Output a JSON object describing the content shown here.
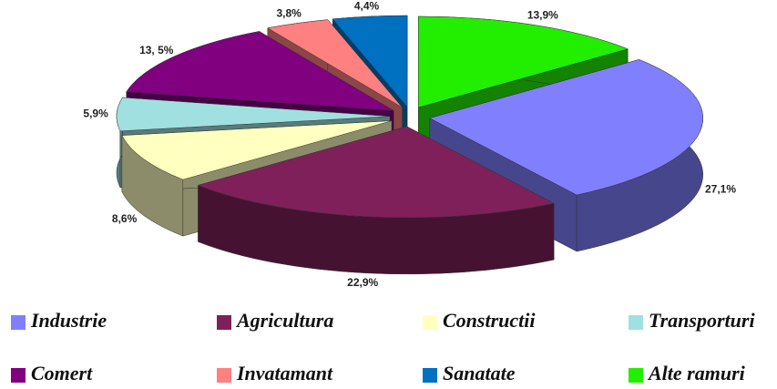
{
  "chart_data": {
    "type": "pie3d",
    "categories": [
      "Industrie",
      "Agricultura",
      "Constructii",
      "Transporturi",
      "Comert",
      "Invatamant",
      "Sanatate",
      "Alte ramuri"
    ],
    "values": [
      27.1,
      22.9,
      8.6,
      5.9,
      13.5,
      3.8,
      4.4,
      13.9
    ],
    "value_labels": [
      "27,1%",
      "22,9%",
      "8,6%",
      "5,9%",
      "13, 5%",
      "3,8%",
      "4,4%",
      "13,9%"
    ],
    "colors": [
      "#8080ff",
      "#80205a",
      "#ffffc0",
      "#a0e0e0",
      "#800080",
      "#ff8080",
      "#0070c0",
      "#22ee00"
    ],
    "legend": "bottom"
  }
}
